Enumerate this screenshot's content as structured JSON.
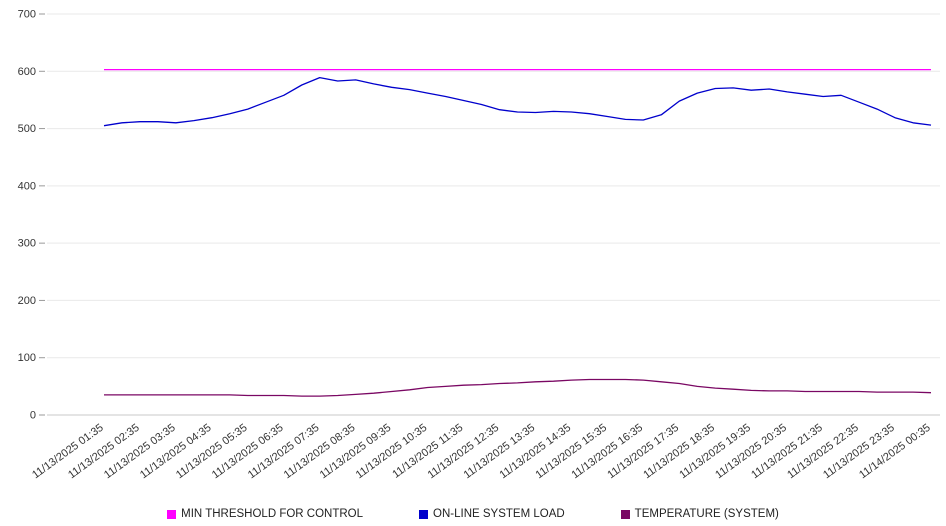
{
  "chart_data": {
    "type": "line",
    "title": "",
    "xlabel": "",
    "ylabel": "",
    "ylim": [
      0,
      700
    ],
    "yticks": [
      0,
      100,
      200,
      300,
      400,
      500,
      600,
      700
    ],
    "grid": true,
    "legend_position": "bottom",
    "categories": [
      "11/13/2025 01:35",
      "11/13/2025 02:35",
      "11/13/2025 03:35",
      "11/13/2025 04:35",
      "11/13/2025 05:35",
      "11/13/2025 06:35",
      "11/13/2025 07:35",
      "11/13/2025 08:35",
      "11/13/2025 09:35",
      "11/13/2025 10:35",
      "11/13/2025 11:35",
      "11/13/2025 12:35",
      "11/13/2025 13:35",
      "11/13/2025 14:35",
      "11/13/2025 15:35",
      "11/13/2025 16:35",
      "11/13/2025 17:35",
      "11/13/2025 18:35",
      "11/13/2025 19:35",
      "11/13/2025 20:35",
      "11/13/2025 21:35",
      "11/13/2025 22:35",
      "11/13/2025 23:35",
      "11/14/2025 00:35"
    ],
    "series": [
      {
        "name": "MIN THRESHOLD FOR CONTROL",
        "color": "#ff00ff",
        "values": [
          603,
          603
        ]
      },
      {
        "name": "ON-LINE SYSTEM LOAD",
        "color": "#0000cc",
        "values": [
          505,
          510,
          512,
          512,
          510,
          514,
          519,
          526,
          534,
          546,
          558,
          576,
          589,
          583,
          585,
          578,
          572,
          568,
          562,
          556,
          549,
          542,
          533,
          529,
          528,
          530,
          529,
          526,
          521,
          516,
          515,
          524,
          548,
          562,
          570,
          571,
          567,
          569,
          564,
          560,
          556,
          558,
          546,
          534,
          519,
          510,
          506
        ]
      },
      {
        "name": "TEMPERATURE (SYSTEM)",
        "color": "#7a0763",
        "values": [
          35,
          35,
          35,
          35,
          35,
          35,
          35,
          35,
          34,
          34,
          34,
          33,
          33,
          34,
          36,
          38,
          41,
          44,
          48,
          50,
          52,
          53,
          55,
          56,
          58,
          59,
          61,
          62,
          62,
          62,
          61,
          58,
          55,
          50,
          47,
          45,
          43,
          42,
          42,
          41,
          41,
          41,
          41,
          40,
          40,
          40,
          39
        ]
      }
    ]
  },
  "legend": {
    "item1": "MIN THRESHOLD FOR CONTROL",
    "item2": "ON-LINE SYSTEM LOAD",
    "item3": "TEMPERATURE (SYSTEM)"
  }
}
